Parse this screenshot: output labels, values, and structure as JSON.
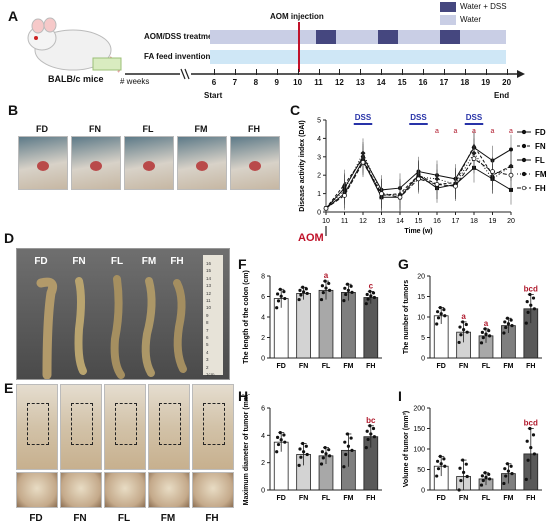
{
  "panels": {
    "A": "A",
    "B": "B",
    "C": "C",
    "D": "D",
    "E": "E",
    "F": "F",
    "G": "G",
    "H": "H",
    "I": "I"
  },
  "timeline": {
    "mouse_label": "BALB/c mice",
    "aom_label": "AOM injection",
    "treatment_label": "AOM/DSS treatment",
    "feed_label": "FA feed invention",
    "weeks_label": "# weeks",
    "weeks": [
      "6",
      "7",
      "8",
      "9",
      "10",
      "11",
      "12",
      "13",
      "14",
      "15",
      "16",
      "17",
      "18",
      "19",
      "20"
    ],
    "start_label": "Start",
    "end_label": "End",
    "legend": [
      {
        "label": "Water + DSS",
        "color": "#45477f"
      },
      {
        "label": "Water",
        "color": "#c9cee5"
      }
    ],
    "treatment_color": "#c9cee5",
    "dss_color": "#45477f",
    "feed_color": "#cfe7f6"
  },
  "groups": [
    "FD",
    "FN",
    "FL",
    "FM",
    "FH"
  ],
  "colon_groups": [
    "FD",
    "FN",
    "FL",
    "FM",
    "FH"
  ],
  "ruler_marks": [
    "1cm",
    "2",
    "3",
    "4",
    "5",
    "6",
    "7",
    "8",
    "9",
    "10",
    "11",
    "12",
    "13",
    "14",
    "15",
    "16"
  ],
  "panel_c": {
    "dss_labels": [
      "DSS",
      "DSS",
      "DSS"
    ],
    "aom_label": "AOM"
  },
  "chart_data": [
    {
      "id": "C",
      "type": "line",
      "xlabel": "Time (w)",
      "ylabel": "Disease activity index (DAI)",
      "x": [
        10,
        11,
        12,
        13,
        14,
        15,
        16,
        17,
        18,
        19,
        20
      ],
      "ylim": [
        0,
        5
      ],
      "yticks": [
        0,
        1,
        2,
        3,
        4,
        5
      ],
      "series": [
        {
          "name": "FD",
          "values": [
            0.2,
            1.3,
            3.0,
            1.2,
            1.3,
            2.2,
            2.0,
            1.8,
            3.5,
            2.8,
            3.4
          ]
        },
        {
          "name": "FN",
          "values": [
            0.2,
            1.5,
            2.9,
            0.9,
            1.0,
            2.0,
            1.5,
            1.6,
            3.6,
            2.0,
            2.5
          ]
        },
        {
          "name": "FL",
          "values": [
            0.2,
            1.0,
            2.8,
            0.8,
            0.8,
            2.0,
            1.3,
            1.5,
            2.4,
            1.8,
            1.2
          ]
        },
        {
          "name": "FM",
          "values": [
            0.2,
            1.2,
            3.2,
            1.0,
            0.9,
            1.9,
            1.8,
            1.5,
            3.2,
            1.8,
            2.5
          ]
        },
        {
          "name": "FH",
          "values": [
            0.2,
            0.9,
            2.7,
            1.0,
            0.8,
            1.8,
            1.5,
            1.4,
            2.9,
            2.2,
            2.0
          ]
        }
      ],
      "markers": [
        "circle",
        "triangle",
        "square",
        "diamond",
        "circle-open"
      ],
      "significance_symbol": "a"
    },
    {
      "id": "F",
      "type": "bar",
      "ylabel": "The length of the colon (cm)",
      "categories": [
        "FD",
        "FN",
        "FL",
        "FM",
        "FH"
      ],
      "values": [
        5.8,
        6.3,
        6.6,
        6.4,
        5.9
      ],
      "errors": [
        0.9,
        0.6,
        0.9,
        0.8,
        0.6
      ],
      "ylim": [
        0,
        8
      ],
      "yticks": [
        0,
        2,
        4,
        6,
        8
      ],
      "annotations": {
        "FL": "a",
        "FH": "c"
      }
    },
    {
      "id": "G",
      "type": "bar",
      "ylabel": "The number of tumors",
      "categories": [
        "FD",
        "FN",
        "FL",
        "FM",
        "FH"
      ],
      "values": [
        10.3,
        6.3,
        5.4,
        7.9,
        12.0
      ],
      "errors": [
        2.0,
        2.5,
        1.7,
        1.8,
        3.5
      ],
      "ylim": [
        0,
        20
      ],
      "yticks": [
        0,
        5,
        10,
        15,
        20
      ],
      "annotations": {
        "FN": "a",
        "FL": "a",
        "FH": "bcd"
      }
    },
    {
      "id": "H",
      "type": "bar",
      "ylabel": "Maximum diameter of tumor (mm)",
      "categories": [
        "FD",
        "FN",
        "FL",
        "FM",
        "FH"
      ],
      "values": [
        3.5,
        2.6,
        2.5,
        2.9,
        3.9
      ],
      "errors": [
        0.7,
        0.8,
        0.6,
        1.2,
        0.8
      ],
      "ylim": [
        0,
        6
      ],
      "yticks": [
        0,
        2,
        4,
        6
      ],
      "annotations": {
        "FH": "bc"
      }
    },
    {
      "id": "I",
      "type": "bar",
      "ylabel": "Volume of tumor (mm³)",
      "categories": [
        "FD",
        "FN",
        "FL",
        "FM",
        "FH"
      ],
      "values": [
        58,
        33,
        27,
        40,
        88
      ],
      "errors": [
        24,
        40,
        15,
        24,
        62
      ],
      "ylim": [
        0,
        200
      ],
      "yticks": [
        0,
        50,
        100,
        150,
        200
      ],
      "annotations": {
        "FH": "bcd"
      }
    }
  ],
  "colors": {
    "bar_fills": [
      "#ffffff",
      "#d3d3d3",
      "#a8a8a8",
      "#7f7f7f",
      "#595959"
    ],
    "annotation_red": "#b0192c",
    "dss_blue": "#2833a8",
    "aom_red": "#c0122a"
  }
}
